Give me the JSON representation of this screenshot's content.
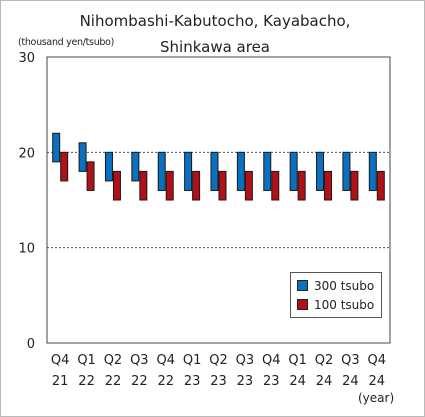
{
  "chart_data": {
    "type": "bar",
    "title_lines": [
      "Nihombashi-Kabutocho, Kayabacho,",
      "Shinkawa area"
    ],
    "ylabel": "(thousand yen/tsubo)",
    "xlabel": "(year)",
    "ylim": [
      0,
      30
    ],
    "yticks": [
      "0",
      "10",
      "20",
      "30"
    ],
    "grid_values": [
      10,
      20
    ],
    "categories": [
      {
        "q": "Q4",
        "y": "21"
      },
      {
        "q": "Q1",
        "y": "22"
      },
      {
        "q": "Q2",
        "y": "22"
      },
      {
        "q": "Q3",
        "y": "22"
      },
      {
        "q": "Q4",
        "y": "22"
      },
      {
        "q": "Q1",
        "y": "23"
      },
      {
        "q": "Q2",
        "y": "23"
      },
      {
        "q": "Q3",
        "y": "23"
      },
      {
        "q": "Q4",
        "y": "23"
      },
      {
        "q": "Q1",
        "y": "24"
      },
      {
        "q": "Q2",
        "y": "24"
      },
      {
        "q": "Q3",
        "y": "24"
      },
      {
        "q": "Q4",
        "y": "24"
      }
    ],
    "series": [
      {
        "name": "300 tsubo",
        "color": "#0a70bf",
        "ranges": [
          [
            19,
            22
          ],
          [
            18,
            21
          ],
          [
            17,
            20
          ],
          [
            17,
            20
          ],
          [
            16,
            20
          ],
          [
            16,
            20
          ],
          [
            16,
            20
          ],
          [
            16,
            20
          ],
          [
            16,
            20
          ],
          [
            16,
            20
          ],
          [
            16,
            20
          ],
          [
            16,
            20
          ],
          [
            16,
            20
          ]
        ]
      },
      {
        "name": "100 tsubo",
        "color": "#b01018",
        "ranges": [
          [
            17,
            20
          ],
          [
            16,
            19
          ],
          [
            15,
            18
          ],
          [
            15,
            18
          ],
          [
            15,
            18
          ],
          [
            15,
            18
          ],
          [
            15,
            18
          ],
          [
            15,
            18
          ],
          [
            15,
            18
          ],
          [
            15,
            18
          ],
          [
            15,
            18
          ],
          [
            15,
            18
          ],
          [
            15,
            18
          ]
        ]
      }
    ],
    "legend_position": "bottom-right",
    "grid": true
  }
}
